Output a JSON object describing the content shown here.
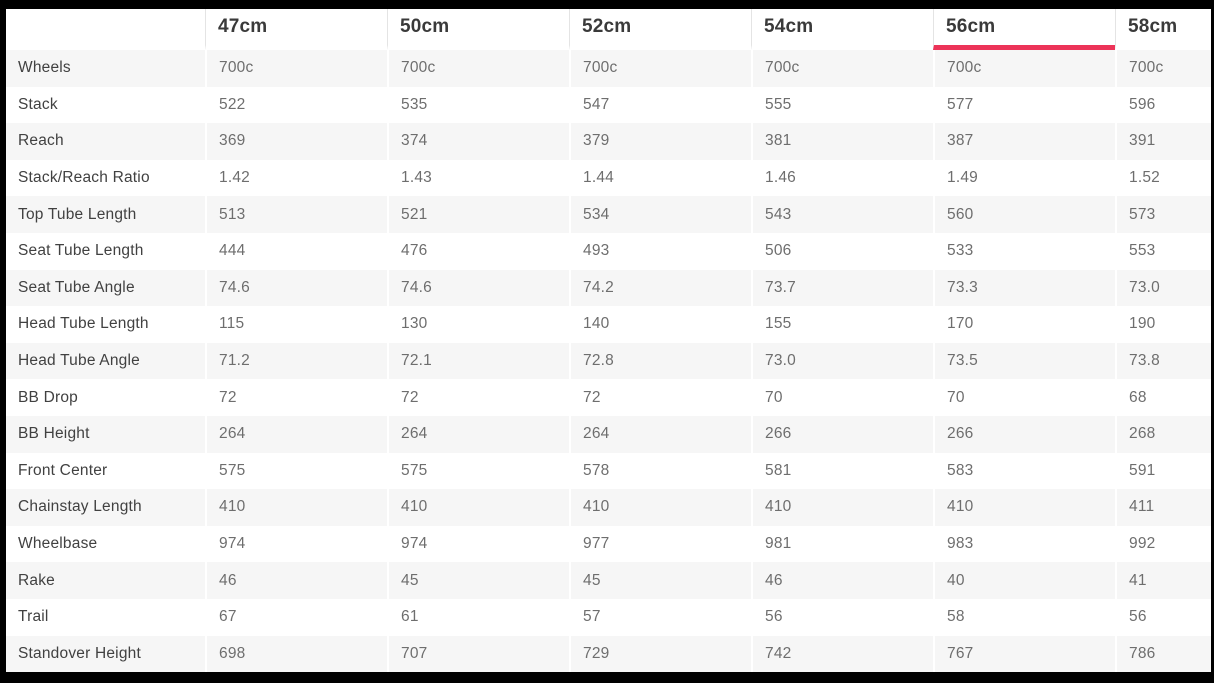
{
  "table": {
    "corner_label": "",
    "columns": [
      "47cm",
      "50cm",
      "52cm",
      "54cm",
      "56cm",
      "58cm"
    ],
    "active_column": "56cm",
    "active_column_index": 4,
    "rows": [
      {
        "label": "Wheels",
        "values": [
          "700c",
          "700c",
          "700c",
          "700c",
          "700c",
          "700c"
        ]
      },
      {
        "label": "Stack",
        "values": [
          "522",
          "535",
          "547",
          "555",
          "577",
          "596"
        ]
      },
      {
        "label": "Reach",
        "values": [
          "369",
          "374",
          "379",
          "381",
          "387",
          "391"
        ]
      },
      {
        "label": "Stack/Reach Ratio",
        "values": [
          "1.42",
          "1.43",
          "1.44",
          "1.46",
          "1.49",
          "1.52"
        ]
      },
      {
        "label": "Top Tube Length",
        "values": [
          "513",
          "521",
          "534",
          "543",
          "560",
          "573"
        ]
      },
      {
        "label": "Seat Tube Length",
        "values": [
          "444",
          "476",
          "493",
          "506",
          "533",
          "553"
        ]
      },
      {
        "label": "Seat Tube Angle",
        "values": [
          "74.6",
          "74.6",
          "74.2",
          "73.7",
          "73.3",
          "73.0"
        ]
      },
      {
        "label": "Head Tube Length",
        "values": [
          "115",
          "130",
          "140",
          "155",
          "170",
          "190"
        ]
      },
      {
        "label": "Head Tube Angle",
        "values": [
          "71.2",
          "72.1",
          "72.8",
          "73.0",
          "73.5",
          "73.8"
        ]
      },
      {
        "label": "BB Drop",
        "values": [
          "72",
          "72",
          "72",
          "70",
          "70",
          "68"
        ]
      },
      {
        "label": "BB Height",
        "values": [
          "264",
          "264",
          "264",
          "266",
          "266",
          "268"
        ]
      },
      {
        "label": "Front Center",
        "values": [
          "575",
          "575",
          "578",
          "581",
          "583",
          "591"
        ]
      },
      {
        "label": "Chainstay Length",
        "values": [
          "410",
          "410",
          "410",
          "410",
          "410",
          "411"
        ]
      },
      {
        "label": "Wheelbase",
        "values": [
          "974",
          "974",
          "977",
          "981",
          "983",
          "992"
        ]
      },
      {
        "label": "Rake",
        "values": [
          "46",
          "45",
          "45",
          "46",
          "40",
          "41"
        ]
      },
      {
        "label": "Trail",
        "values": [
          "67",
          "61",
          "57",
          "56",
          "58",
          "56"
        ]
      },
      {
        "label": "Standover Height",
        "values": [
          "698",
          "707",
          "729",
          "742",
          "767",
          "786"
        ]
      }
    ],
    "colors": {
      "accent": "#ec3358",
      "stripe": "#f6f6f6",
      "page_background": "#000000",
      "table_background": "#ffffff",
      "header_text": "#3a3a3a",
      "label_text": "#414141",
      "value_text": "#6e6e6e"
    }
  }
}
